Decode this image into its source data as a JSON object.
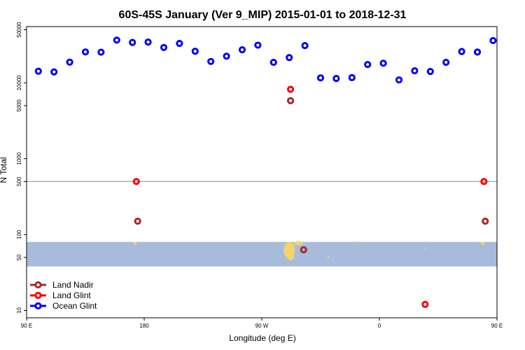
{
  "chart_data": {
    "type": "scatter",
    "title": "60S-45S January (Ver 9_MIP)   2015-01-01 to 2018-12-31",
    "xlabel": "Longitude (deg E)",
    "ylabel": "N Total",
    "x_scale": "linear",
    "y_scale": "log",
    "xlim": [
      90,
      450
    ],
    "ylim": [
      8,
      55000
    ],
    "x_ticks": [
      {
        "value": 90,
        "label": "90 E"
      },
      {
        "value": 180,
        "label": "180"
      },
      {
        "value": 270,
        "label": "90 W"
      },
      {
        "value": 360,
        "label": "0"
      },
      {
        "value": 450,
        "label": "90 E"
      }
    ],
    "y_ticks": [
      {
        "value": 10,
        "label": "10"
      },
      {
        "value": 50,
        "label": "50"
      },
      {
        "value": 100,
        "label": "100"
      },
      {
        "value": 500,
        "label": "500"
      },
      {
        "value": 1000,
        "label": "1000"
      },
      {
        "value": 5000,
        "label": "5000"
      },
      {
        "value": 10000,
        "label": "10000"
      },
      {
        "value": 50000,
        "label": "50000"
      }
    ],
    "reference_line": {
      "value": 500,
      "color": "#888888"
    },
    "map_band": {
      "y_range": [
        38,
        80
      ],
      "color": "#a7bcdb",
      "land_color": "#f5d36b"
    },
    "legend_position": "bottom-left",
    "series": [
      {
        "name": "Land Nadir",
        "color": "#a52a2a",
        "points": [
          {
            "x": 175,
            "y": 150
          },
          {
            "x": 292,
            "y": 5800
          },
          {
            "x": 302,
            "y": 63
          },
          {
            "x": 441,
            "y": 150
          }
        ]
      },
      {
        "name": "Land Glint",
        "color": "#ff0000",
        "points": [
          {
            "x": 174,
            "y": 500
          },
          {
            "x": 292,
            "y": 8200
          },
          {
            "x": 395,
            "y": 12
          },
          {
            "x": 440,
            "y": 500
          }
        ]
      },
      {
        "name": "Ocean Glint",
        "color": "#0000ff",
        "points": [
          {
            "x": 99,
            "y": 14200
          },
          {
            "x": 111,
            "y": 13900
          },
          {
            "x": 123,
            "y": 18700
          },
          {
            "x": 135,
            "y": 25500
          },
          {
            "x": 147,
            "y": 25300
          },
          {
            "x": 159,
            "y": 36500
          },
          {
            "x": 171,
            "y": 34000
          },
          {
            "x": 183,
            "y": 34400
          },
          {
            "x": 195,
            "y": 29200
          },
          {
            "x": 207,
            "y": 33000
          },
          {
            "x": 219,
            "y": 26000
          },
          {
            "x": 231,
            "y": 19100
          },
          {
            "x": 243,
            "y": 22400
          },
          {
            "x": 255,
            "y": 27200
          },
          {
            "x": 267,
            "y": 31300
          },
          {
            "x": 279,
            "y": 18600
          },
          {
            "x": 291,
            "y": 21500
          },
          {
            "x": 303,
            "y": 30900
          },
          {
            "x": 315,
            "y": 11600
          },
          {
            "x": 327,
            "y": 11400
          },
          {
            "x": 339,
            "y": 11700
          },
          {
            "x": 351,
            "y": 17400
          },
          {
            "x": 363,
            "y": 18100
          },
          {
            "x": 375,
            "y": 10900
          },
          {
            "x": 387,
            "y": 14400
          },
          {
            "x": 399,
            "y": 14100
          },
          {
            "x": 411,
            "y": 18600
          },
          {
            "x": 423,
            "y": 25800
          },
          {
            "x": 435,
            "y": 25400
          },
          {
            "x": 447,
            "y": 36000
          }
        ]
      }
    ]
  }
}
